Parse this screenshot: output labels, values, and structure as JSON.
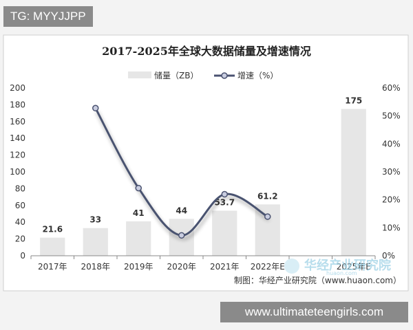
{
  "overlays": {
    "tag": "TG: MYYJJPP",
    "site": "www.ultimateteengirls.com",
    "watermark": "华经产业研究院",
    "watermark_sub": "huaon.com"
  },
  "chart_data": {
    "type": "bar",
    "title": "2017-2025年全球大数据储量及增速情况",
    "categories": [
      "2017年",
      "2018年",
      "2019年",
      "2020年",
      "2021年",
      "2022年E",
      "",
      "2025年E"
    ],
    "series": [
      {
        "name": "储量（ZB）",
        "type": "bar",
        "axis": "left",
        "values": [
          21.6,
          33,
          41,
          44,
          53.7,
          61.2,
          null,
          175
        ],
        "labels": [
          "21.6",
          "33",
          "41",
          "44",
          "53.7",
          "61.2",
          "",
          "175"
        ],
        "color": "#e6e6e6"
      },
      {
        "name": "增速（%）",
        "type": "line",
        "axis": "right",
        "values": [
          null,
          52.8,
          24.2,
          7.3,
          22.0,
          14.0,
          null,
          null
        ],
        "color": "#4a5270"
      }
    ],
    "y_left": {
      "min": 0,
      "max": 200,
      "ticks": [
        "0",
        "20",
        "40",
        "60",
        "80",
        "100",
        "120",
        "140",
        "160",
        "180",
        "200"
      ]
    },
    "y_right": {
      "min": 0,
      "max": 60,
      "ticks": [
        "0%",
        "10%",
        "20%",
        "30%",
        "40%",
        "50%",
        "60%"
      ]
    },
    "legend": "top-center",
    "source": "制图：华经产业研究院（www.huaon.com）"
  }
}
